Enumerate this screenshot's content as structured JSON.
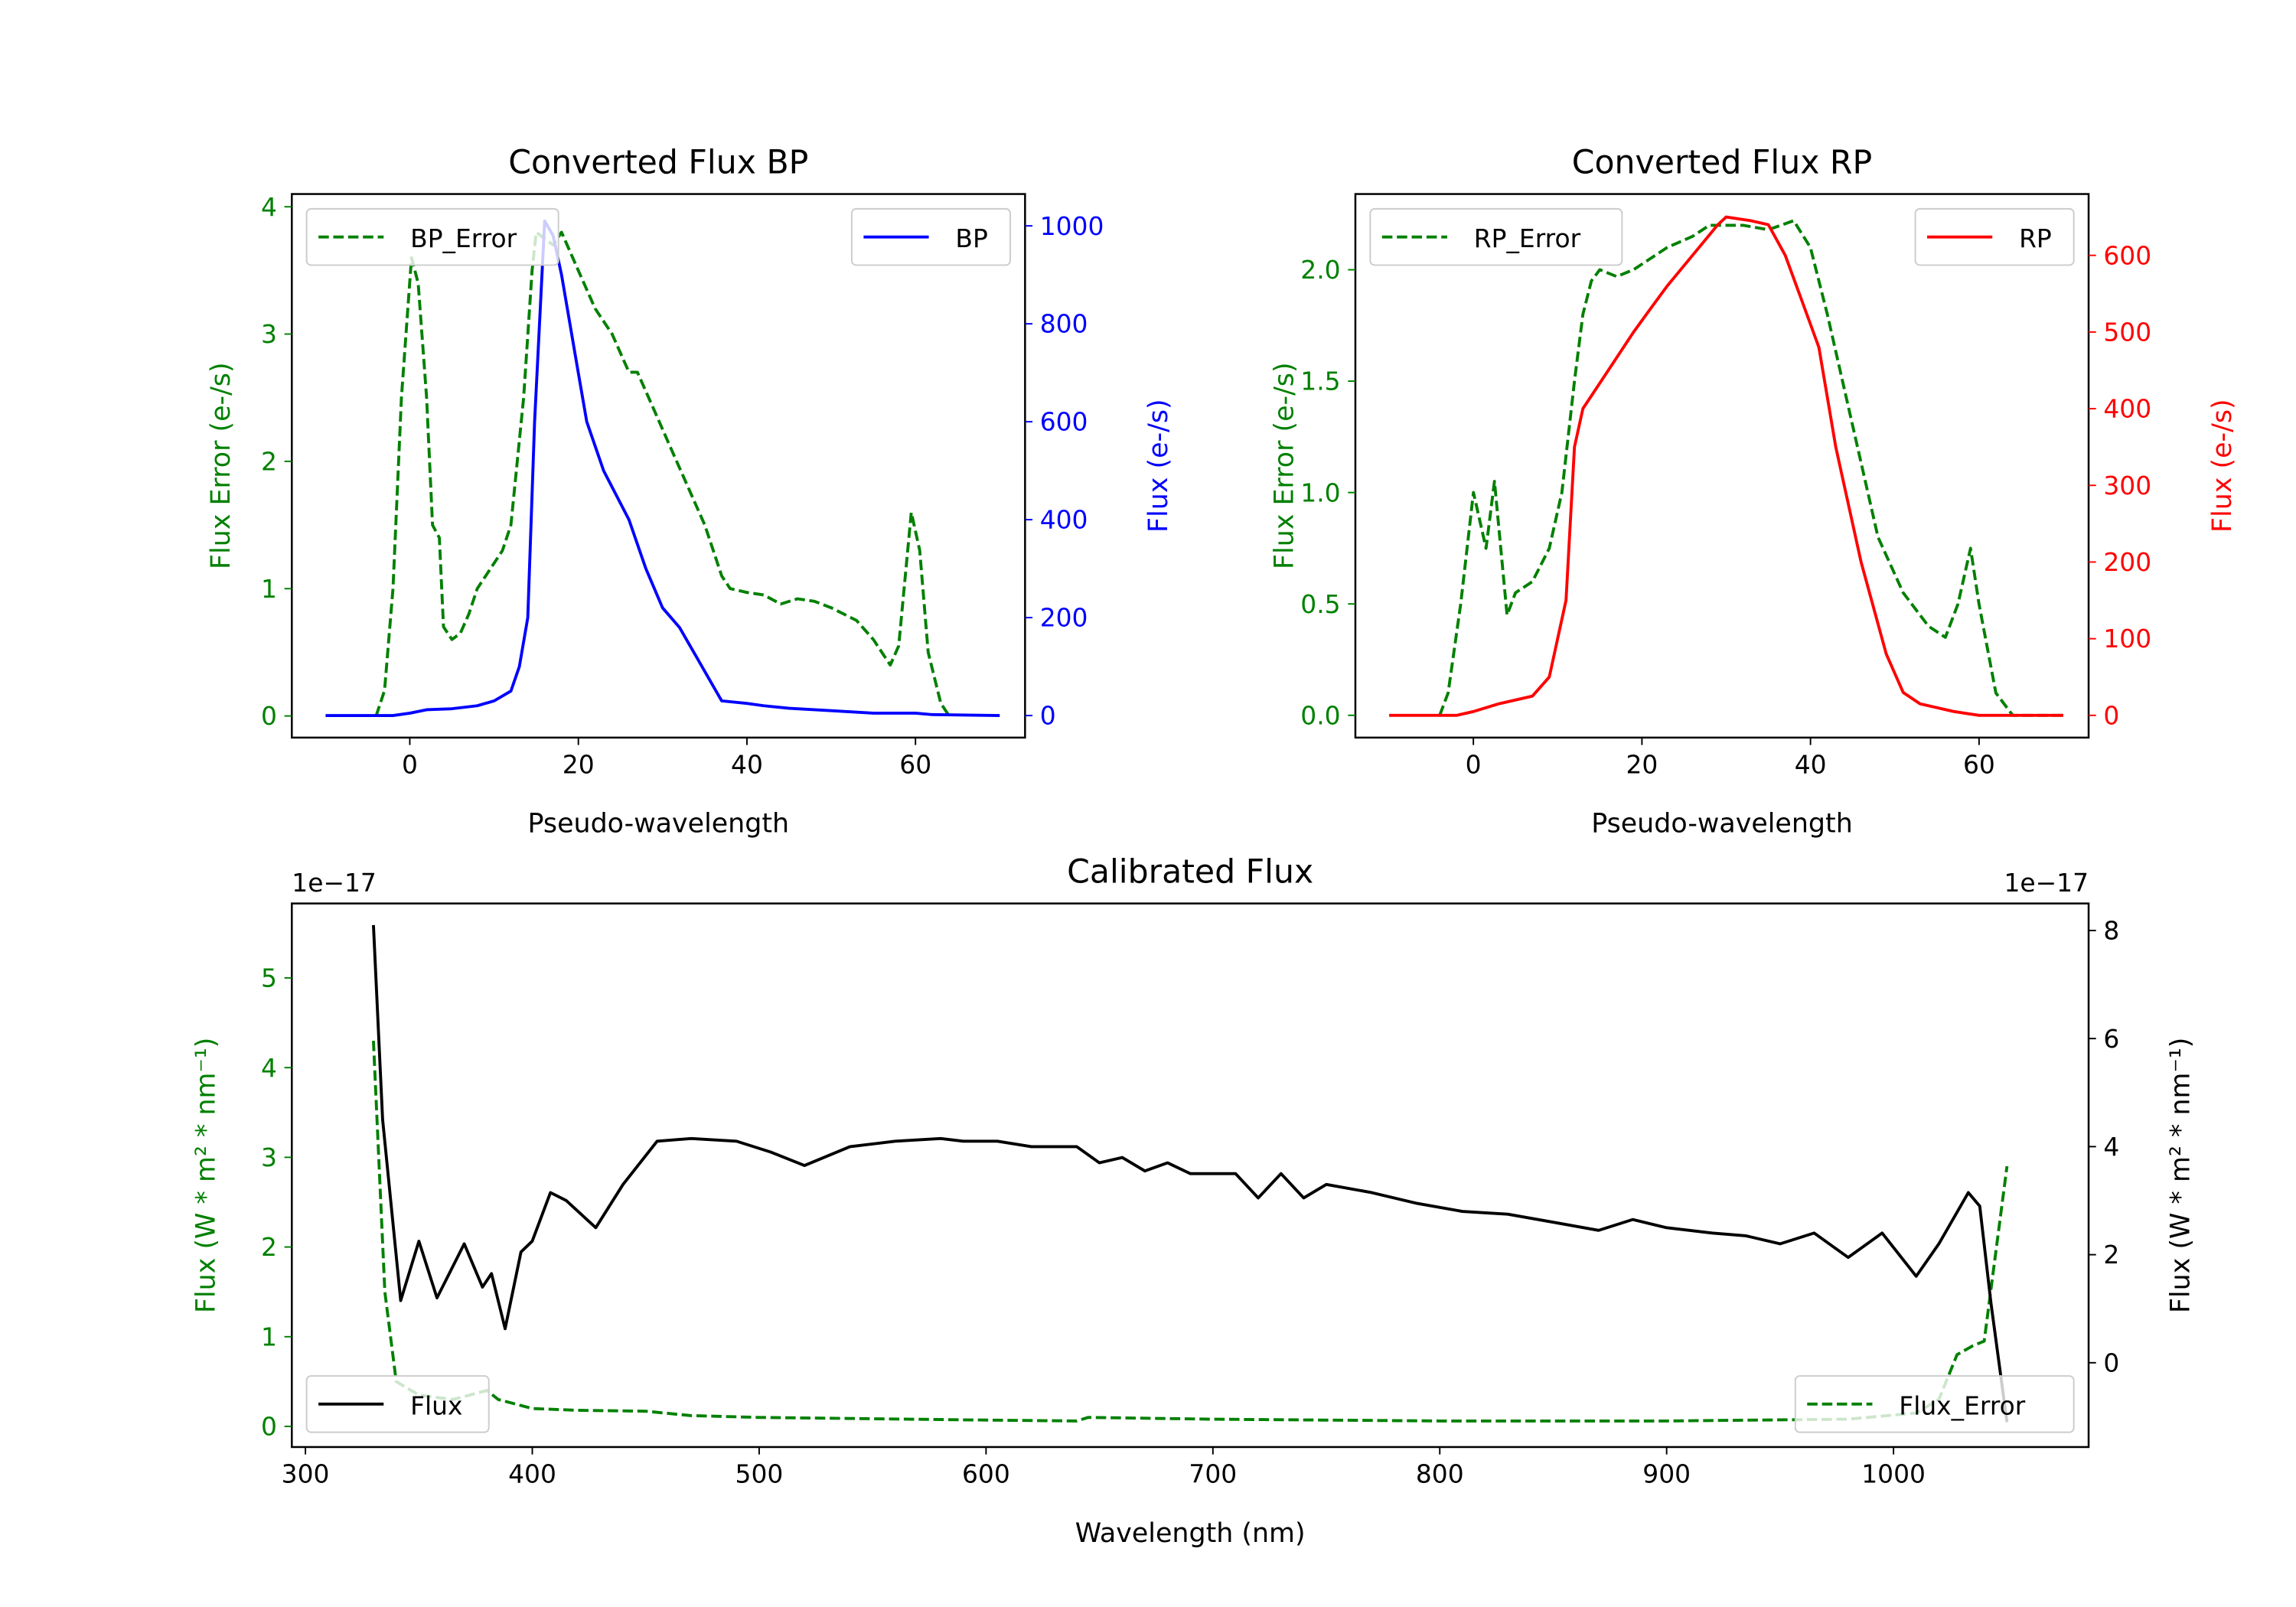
{
  "colors": {
    "bp": "#0000ff",
    "rp": "#ff0000",
    "error": "#008000",
    "flux": "#000000"
  },
  "chart_data": [
    {
      "type": "line",
      "title": "Converted Flux BP",
      "xlabel": "Pseudo-wavelength",
      "ylabel_left": "Flux Error (e-/s)",
      "ylabel_right": "Flux (e-/s)",
      "xlim": [
        -14,
        73
      ],
      "ylim_left": [
        -0.17,
        4.1
      ],
      "ylim_right": [
        -45,
        1065
      ],
      "xticks": [
        "0",
        "20",
        "40",
        "60"
      ],
      "xtick_values": [
        0,
        20,
        40,
        60
      ],
      "yticks_left": [
        "0",
        "1",
        "2",
        "3",
        "4"
      ],
      "ytick_values_left": [
        0,
        1,
        2,
        3,
        4
      ],
      "yticks_right": [
        "0",
        "200",
        "400",
        "600",
        "800",
        "1000"
      ],
      "ytick_values_right": [
        0,
        200,
        400,
        600,
        800,
        1000
      ],
      "legend_left": "BP_Error",
      "legend_right": "BP",
      "series": [
        {
          "name": "BP_Error",
          "axis": "left",
          "style": "dashed",
          "color": "#008000",
          "x": [
            -4,
            -3,
            -2,
            -1,
            0.2,
            1,
            2,
            2.7,
            3.5,
            4,
            5,
            6,
            7,
            8,
            9,
            11,
            12,
            13.5,
            14.5,
            15,
            17,
            18,
            20,
            22,
            24,
            26,
            27,
            29,
            31,
            33,
            35,
            37,
            38,
            40,
            42,
            44,
            46,
            48,
            50,
            53,
            55,
            57,
            58,
            59.5,
            60.5,
            61.5,
            63,
            64
          ],
          "y": [
            0,
            0.2,
            1,
            2.5,
            3.6,
            3.4,
            2.5,
            1.5,
            1.4,
            0.7,
            0.6,
            0.65,
            0.8,
            1.0,
            1.1,
            1.3,
            1.5,
            2.5,
            3.5,
            3.8,
            3.7,
            3.8,
            3.5,
            3.2,
            3.0,
            2.7,
            2.7,
            2.4,
            2.1,
            1.8,
            1.5,
            1.1,
            1.0,
            0.97,
            0.95,
            0.88,
            0.92,
            0.9,
            0.85,
            0.75,
            0.6,
            0.4,
            0.55,
            1.6,
            1.3,
            0.5,
            0.1,
            0
          ]
        },
        {
          "name": "BP",
          "axis": "right",
          "style": "solid",
          "color": "#0000ff",
          "x": [
            -10,
            -2,
            0,
            2,
            5,
            8,
            10,
            12,
            13,
            14,
            14.8,
            16,
            17,
            18,
            20,
            21,
            23,
            26,
            28,
            30,
            32,
            34,
            36,
            37,
            40,
            42,
            45,
            50,
            55,
            60,
            62,
            70
          ],
          "y": [
            0,
            0,
            5,
            12,
            14,
            20,
            30,
            50,
            100,
            200,
            600,
            1010,
            980,
            900,
            700,
            600,
            500,
            400,
            300,
            220,
            180,
            120,
            60,
            30,
            25,
            20,
            15,
            10,
            5,
            5,
            2,
            0
          ]
        }
      ]
    },
    {
      "type": "line",
      "title": "Converted Flux RP",
      "xlabel": "Pseudo-wavelength",
      "ylabel_left": "Flux Error (e-/s)",
      "ylabel_right": "Flux (e-/s)",
      "xlim": [
        -14,
        73
      ],
      "ylim_left": [
        -0.1,
        2.34
      ],
      "ylim_right": [
        -29,
        680
      ],
      "xticks": [
        "0",
        "20",
        "40",
        "60"
      ],
      "xtick_values": [
        0,
        20,
        40,
        60
      ],
      "yticks_left": [
        "0.0",
        "0.5",
        "1.0",
        "1.5",
        "2.0"
      ],
      "ytick_values_left": [
        0,
        0.5,
        1.0,
        1.5,
        2.0
      ],
      "yticks_right": [
        "0",
        "100",
        "200",
        "300",
        "400",
        "500",
        "600"
      ],
      "ytick_values_right": [
        0,
        100,
        200,
        300,
        400,
        500,
        600
      ],
      "legend_left": "RP_Error",
      "legend_right": "RP",
      "series": [
        {
          "name": "RP_Error",
          "axis": "left",
          "style": "dashed",
          "color": "#008000",
          "x": [
            -4,
            -3,
            -1.5,
            0,
            1.5,
            2.5,
            4,
            5,
            7,
            9,
            10.5,
            12,
            13,
            14,
            15,
            17,
            19,
            21,
            23,
            26,
            28,
            32,
            35,
            38,
            40,
            42,
            45,
            48,
            51,
            54,
            56,
            57.5,
            59,
            60,
            62,
            64,
            70
          ],
          "y": [
            0,
            0.1,
            0.5,
            1.0,
            0.75,
            1.05,
            0.45,
            0.55,
            0.6,
            0.75,
            1.0,
            1.5,
            1.8,
            1.95,
            2.0,
            1.97,
            2.0,
            2.05,
            2.1,
            2.15,
            2.2,
            2.2,
            2.18,
            2.22,
            2.1,
            1.8,
            1.3,
            0.8,
            0.55,
            0.4,
            0.35,
            0.5,
            0.75,
            0.5,
            0.1,
            0,
            0
          ]
        },
        {
          "name": "RP",
          "axis": "right",
          "style": "solid",
          "color": "#ff0000",
          "x": [
            -10,
            -2,
            0,
            3,
            7,
            9,
            11,
            12,
            13,
            16,
            19,
            21,
            23,
            26,
            29,
            30,
            33,
            35,
            37,
            39,
            41,
            43,
            46,
            49,
            51,
            53,
            55,
            57,
            60,
            70
          ],
          "y": [
            0,
            0,
            5,
            15,
            25,
            50,
            150,
            350,
            400,
            450,
            500,
            530,
            560,
            600,
            640,
            650,
            645,
            640,
            600,
            540,
            480,
            350,
            200,
            80,
            30,
            15,
            10,
            5,
            0,
            0
          ]
        }
      ]
    },
    {
      "type": "line",
      "title": "Calibrated Flux",
      "xlabel": "Wavelength (nm)",
      "ylabel_left": "Flux (W * m² * nm⁻¹)",
      "ylabel_right": "Flux (W * m² * nm⁻¹)",
      "offset_left": "1e−17",
      "offset_right": "1e−17",
      "xlim": [
        294,
        1086
      ],
      "ylim_left": [
        -0.23,
        5.83
      ],
      "ylim_right": [
        -1.56,
        8.5
      ],
      "xticks": [
        "300",
        "400",
        "500",
        "600",
        "700",
        "800",
        "900",
        "1000"
      ],
      "xtick_values": [
        300,
        400,
        500,
        600,
        700,
        800,
        900,
        1000
      ],
      "yticks_left": [
        "0",
        "1",
        "2",
        "3",
        "4",
        "5"
      ],
      "ytick_values_left": [
        0,
        1,
        2,
        3,
        4,
        5
      ],
      "yticks_right": [
        "0",
        "2",
        "4",
        "6",
        "8"
      ],
      "ytick_values_right": [
        0,
        2,
        4,
        6,
        8
      ],
      "legend_left": "Flux",
      "legend_right": "Flux_Error",
      "series": [
        {
          "name": "Flux_Error",
          "axis": "left",
          "style": "dashed",
          "color": "#008000",
          "x": [
            330,
            335,
            340,
            350,
            365,
            380,
            385,
            400,
            420,
            450,
            470,
            500,
            600,
            640,
            645,
            700,
            800,
            900,
            980,
            1010,
            1020,
            1028,
            1035,
            1040,
            1050
          ],
          "y": [
            4.3,
            1.5,
            0.5,
            0.35,
            0.3,
            0.4,
            0.3,
            0.2,
            0.18,
            0.17,
            0.12,
            0.1,
            0.07,
            0.06,
            0.1,
            0.08,
            0.06,
            0.06,
            0.08,
            0.15,
            0.3,
            0.8,
            0.9,
            0.95,
            2.9
          ]
        },
        {
          "name": "Flux",
          "axis": "right",
          "style": "solid",
          "color": "#000000",
          "x": [
            330,
            334,
            342,
            350,
            358,
            370,
            378,
            382,
            388,
            395,
            400,
            408,
            415,
            428,
            440,
            455,
            470,
            490,
            505,
            520,
            540,
            560,
            580,
            590,
            605,
            620,
            640,
            650,
            660,
            670,
            680,
            690,
            710,
            720,
            730,
            740,
            750,
            770,
            790,
            810,
            830,
            850,
            870,
            885,
            900,
            920,
            935,
            950,
            965,
            980,
            995,
            1010,
            1020,
            1033,
            1038,
            1043,
            1050
          ],
          "y": [
            8.1,
            4.5,
            1.15,
            2.25,
            1.2,
            2.2,
            1.4,
            1.65,
            0.63,
            2.05,
            2.25,
            3.15,
            3.0,
            2.5,
            3.3,
            4.1,
            4.15,
            4.1,
            3.9,
            3.65,
            4.0,
            4.1,
            4.15,
            4.1,
            4.1,
            4.0,
            4.0,
            3.7,
            3.8,
            3.55,
            3.7,
            3.5,
            3.5,
            3.05,
            3.5,
            3.05,
            3.3,
            3.15,
            2.95,
            2.8,
            2.75,
            2.6,
            2.45,
            2.65,
            2.5,
            2.4,
            2.35,
            2.2,
            2.4,
            1.95,
            2.4,
            1.6,
            2.2,
            3.15,
            2.9,
            1.1,
            -1.1
          ]
        }
      ]
    }
  ]
}
